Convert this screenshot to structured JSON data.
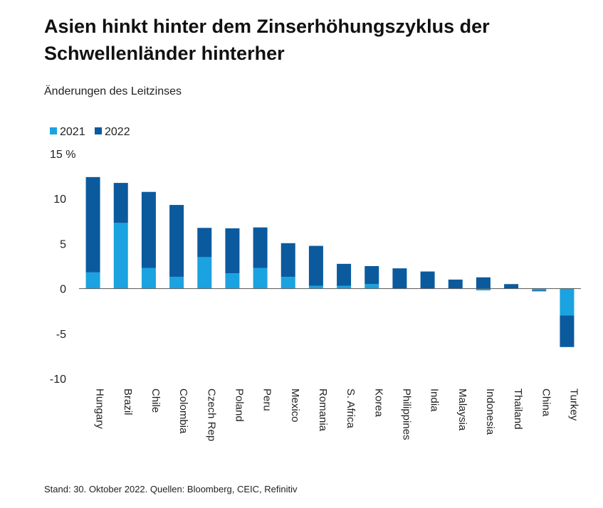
{
  "title": "Asien hinkt hinter dem Zinserhöhungszyklus der Schwellenländer hinterher",
  "subtitle": "Änderungen des Leitzinses",
  "footer": "Stand: 30. Oktober 2022. Quellen: Bloomberg, CEIC, Refinitiv",
  "colors": {
    "s2021": "#1aa3e0",
    "s2022": "#0b5a9e"
  },
  "chart_data": {
    "type": "bar",
    "stacked": true,
    "categories": [
      "Hungary",
      "Brazil",
      "Chile",
      "Colombia",
      "Czech Rep",
      "Poland",
      "Peru",
      "Mexico",
      "Romania",
      "S. Africa",
      "Korea",
      "Philippines",
      "India",
      "Malaysia",
      "Indonesia",
      "Thailand",
      "China",
      "Turkey"
    ],
    "series": [
      {
        "name": "2021",
        "values": [
          1.8,
          7.3,
          2.3,
          1.3,
          3.5,
          1.7,
          2.3,
          1.3,
          0.3,
          0.3,
          0.5,
          0,
          0,
          0,
          -0.2,
          0,
          -0.2,
          -3.0
        ]
      },
      {
        "name": "2022",
        "values": [
          10.6,
          4.45,
          8.45,
          8.0,
          3.25,
          5.0,
          4.5,
          3.75,
          4.45,
          2.45,
          2.0,
          2.25,
          1.9,
          1.0,
          1.25,
          0.5,
          -0.1,
          -3.5
        ]
      }
    ],
    "ylim": [
      -10,
      15
    ],
    "yticks": [
      15,
      10,
      5,
      0,
      -5,
      -10
    ],
    "yunit": "%",
    "legend": "top-left"
  }
}
